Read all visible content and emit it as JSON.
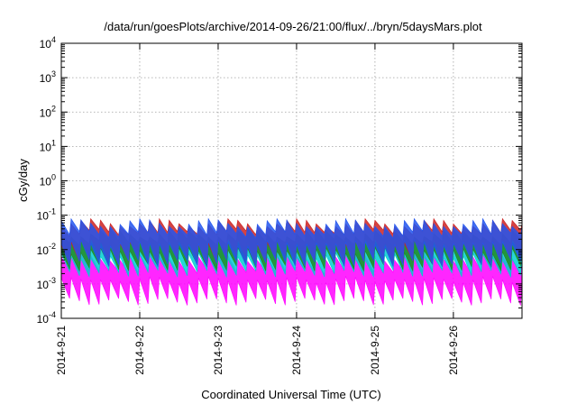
{
  "chart_data": {
    "type": "area",
    "title": "/data/run/goesPlots/archive/2014-09-26/21:00/flux/../bryn/5daysMars.plot",
    "xlabel": "Coordinated Universal Time (UTC)",
    "ylabel": "cGy/day",
    "y_scale": "log",
    "ylim": [
      0.0001,
      10000
    ],
    "y_ticks": [
      {
        "value": 0.0001,
        "base": "10",
        "exp": "-4"
      },
      {
        "value": 0.001,
        "base": "10",
        "exp": "-3"
      },
      {
        "value": 0.01,
        "base": "10",
        "exp": "-2"
      },
      {
        "value": 0.1,
        "base": "10",
        "exp": "-1"
      },
      {
        "value": 1,
        "base": "10",
        "exp": "0"
      },
      {
        "value": 10,
        "base": "10",
        "exp": "1"
      },
      {
        "value": 100,
        "base": "10",
        "exp": "2"
      },
      {
        "value": 1000,
        "base": "10",
        "exp": "3"
      },
      {
        "value": 10000,
        "base": "10",
        "exp": "4"
      }
    ],
    "xlim": [
      "2014-09-21T00:00",
      "2014-09-26T21:00"
    ],
    "x_ticks": [
      {
        "value": "2014-09-21T00:00",
        "label": "2014-9-21"
      },
      {
        "value": "2014-09-22T00:00",
        "label": "2014-9-22"
      },
      {
        "value": "2014-09-23T00:00",
        "label": "2014-9-23"
      },
      {
        "value": "2014-09-24T00:00",
        "label": "2014-9-24"
      },
      {
        "value": "2014-09-25T00:00",
        "label": "2014-9-25"
      },
      {
        "value": "2014-09-26T00:00",
        "label": "2014-9-26"
      }
    ],
    "grid": true,
    "series": [
      {
        "color": "#ff00ff",
        "approx_min": 0.0003,
        "approx_max": 0.006
      },
      {
        "color": "#00ced1",
        "approx_min": 0.002,
        "approx_max": 0.02
      },
      {
        "color": "#228b22",
        "approx_min": 0.003,
        "approx_max": 0.03
      },
      {
        "color": "#cc2222",
        "approx_min": 0.005,
        "approx_max": 0.06
      },
      {
        "color": "#2255ee",
        "approx_min": 0.004,
        "approx_max": 0.06
      }
    ],
    "oscillation_period_hours": 3
  }
}
